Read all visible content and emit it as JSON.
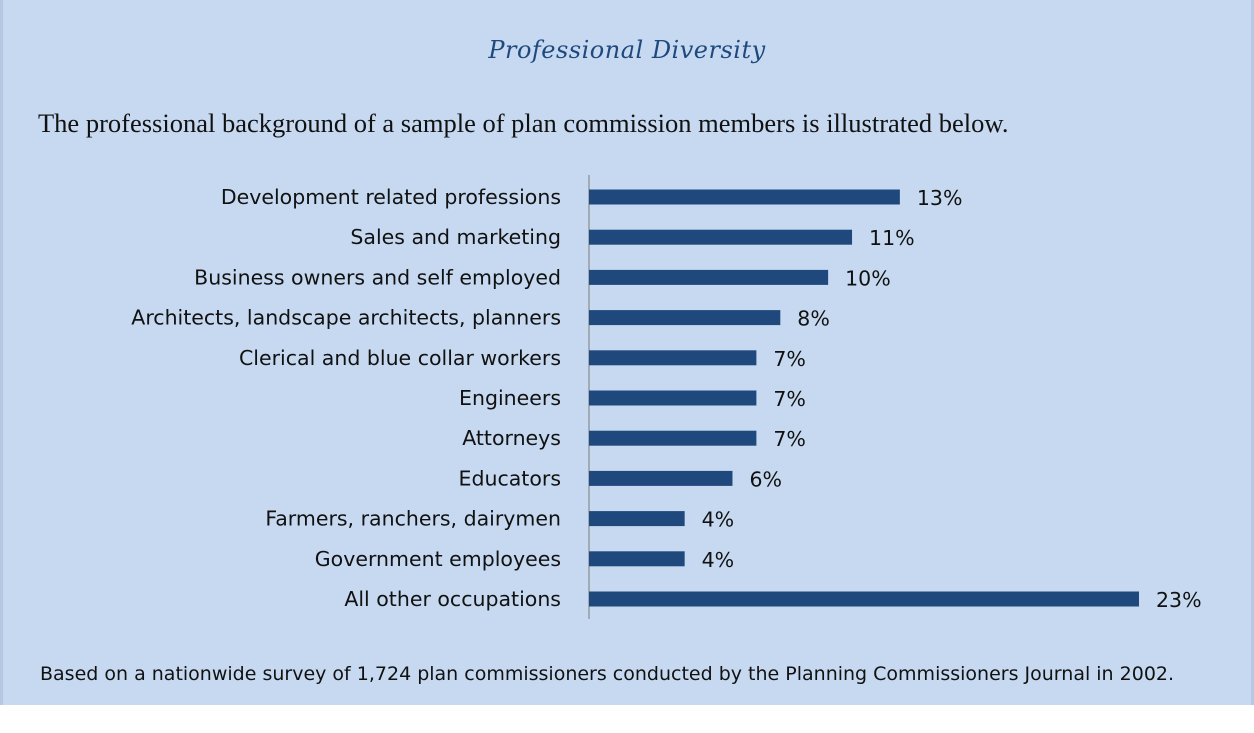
{
  "title": "Professional Diversity",
  "subtitle": "The professional background of a sample of plan commission members is illustrated below.",
  "footnote": "Based on a nationwide survey of 1,724 plan commissioners conducted by the Planning Commissioners Journal in 2002.",
  "colors": {
    "background": "#c6d9f1",
    "bar": "#1f497d",
    "title": "#1f497d",
    "axis": "#8c8c8c"
  },
  "chart_data": {
    "type": "bar",
    "orientation": "horizontal",
    "title": "",
    "xlabel": "",
    "ylabel": "",
    "xlim": [
      0,
      23
    ],
    "grid": false,
    "legend": "none",
    "categories": [
      "Development related professions",
      "Sales and marketing",
      "Business owners and self employed",
      "Architects, landscape architects, planners",
      "Clerical and blue collar workers",
      "Engineers",
      "Attorneys",
      "Educators",
      "Farmers, ranchers, dairymen",
      "Government employees",
      "All other occupations"
    ],
    "values": [
      13,
      11,
      10,
      8,
      7,
      7,
      7,
      6,
      4,
      4,
      23
    ],
    "value_labels": [
      "13%",
      "11%",
      "10%",
      "8%",
      "7%",
      "7%",
      "7%",
      "6%",
      "4%",
      "4%",
      "23%"
    ]
  }
}
